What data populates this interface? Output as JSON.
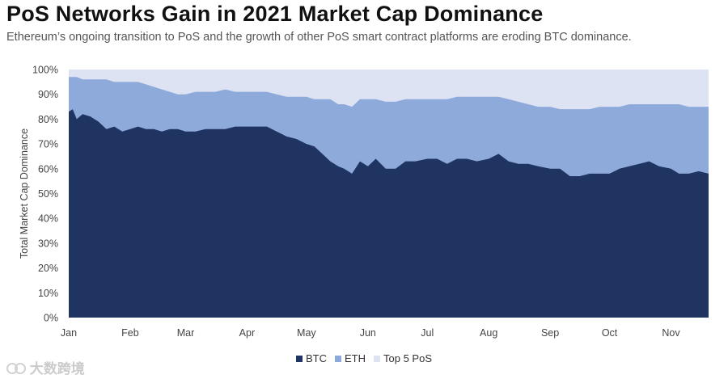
{
  "title": "PoS Networks Gain in 2021 Market Cap Dominance",
  "subtitle": "Ethereum’s ongoing transition to PoS and the growth of other PoS smart contract platforms are eroding BTC dominance.",
  "watermark": "大数跨境",
  "chart_data": {
    "type": "area",
    "stacked": true,
    "ylabel": "Total Market Cap Dominance",
    "ylim": [
      0,
      100
    ],
    "y_ticks": [
      "0%",
      "10%",
      "20%",
      "30%",
      "40%",
      "50%",
      "60%",
      "70%",
      "80%",
      "90%",
      "100%"
    ],
    "x_ticks": [
      "Jan",
      "Feb",
      "Mar",
      "Apr",
      "May",
      "Jun",
      "Jul",
      "Aug",
      "Sep",
      "Oct",
      "Nov"
    ],
    "x_range": [
      "2021-01-01",
      "2021-11-20"
    ],
    "grid": false,
    "legend_position": "bottom",
    "x": [
      "2021-01-01",
      "2021-01-03",
      "2021-01-05",
      "2021-01-08",
      "2021-01-12",
      "2021-01-16",
      "2021-01-20",
      "2021-01-24",
      "2021-01-28",
      "2021-02-01",
      "2021-02-05",
      "2021-02-09",
      "2021-02-13",
      "2021-02-17",
      "2021-02-21",
      "2021-02-25",
      "2021-03-01",
      "2021-03-06",
      "2021-03-11",
      "2021-03-16",
      "2021-03-21",
      "2021-03-26",
      "2021-04-01",
      "2021-04-06",
      "2021-04-11",
      "2021-04-16",
      "2021-04-21",
      "2021-04-26",
      "2021-05-01",
      "2021-05-05",
      "2021-05-09",
      "2021-05-13",
      "2021-05-17",
      "2021-05-20",
      "2021-05-24",
      "2021-05-28",
      "2021-06-01",
      "2021-06-05",
      "2021-06-10",
      "2021-06-15",
      "2021-06-20",
      "2021-06-25",
      "2021-07-01",
      "2021-07-06",
      "2021-07-11",
      "2021-07-16",
      "2021-07-21",
      "2021-07-26",
      "2021-08-01",
      "2021-08-06",
      "2021-08-11",
      "2021-08-16",
      "2021-08-21",
      "2021-08-26",
      "2021-09-01",
      "2021-09-06",
      "2021-09-11",
      "2021-09-16",
      "2021-09-21",
      "2021-09-26",
      "2021-10-01",
      "2021-10-06",
      "2021-10-11",
      "2021-10-16",
      "2021-10-21",
      "2021-10-26",
      "2021-11-01",
      "2021-11-05",
      "2021-11-10",
      "2021-11-15",
      "2021-11-20"
    ],
    "series": [
      {
        "name": "BTC",
        "color": "#1f3461",
        "values": [
          83,
          84,
          80,
          82,
          81,
          79,
          76,
          77,
          75,
          76,
          77,
          76,
          76,
          75,
          76,
          76,
          75,
          75,
          76,
          76,
          76,
          77,
          77,
          77,
          77,
          75,
          73,
          72,
          70,
          69,
          66,
          63,
          61,
          60,
          58,
          63,
          61,
          64,
          60,
          60,
          63,
          63,
          64,
          64,
          62,
          64,
          64,
          63,
          64,
          66,
          63,
          62,
          62,
          61,
          60,
          60,
          57,
          57,
          58,
          58,
          58,
          60,
          61,
          62,
          63,
          61,
          60,
          58,
          58,
          59,
          58
        ]
      },
      {
        "name": "ETH",
        "color": "#8eaadb",
        "values": [
          97,
          97,
          97,
          96,
          96,
          96,
          96,
          95,
          95,
          95,
          95,
          94,
          93,
          92,
          91,
          90,
          90,
          91,
          91,
          91,
          92,
          91,
          91,
          91,
          91,
          90,
          89,
          89,
          89,
          88,
          88,
          88,
          86,
          86,
          85,
          88,
          88,
          88,
          87,
          87,
          88,
          88,
          88,
          88,
          88,
          89,
          89,
          89,
          89,
          89,
          88,
          87,
          86,
          85,
          85,
          84,
          84,
          84,
          84,
          85,
          85,
          85,
          86,
          86,
          86,
          86,
          86,
          86,
          85,
          85,
          85
        ]
      },
      {
        "name": "Top 5 PoS",
        "color": "#dde3f3",
        "values": [
          100,
          100,
          100,
          100,
          100,
          100,
          100,
          100,
          100,
          100,
          100,
          100,
          100,
          100,
          100,
          100,
          100,
          100,
          100,
          100,
          100,
          100,
          100,
          100,
          100,
          100,
          100,
          100,
          100,
          100,
          100,
          100,
          100,
          100,
          100,
          100,
          100,
          100,
          100,
          100,
          100,
          100,
          100,
          100,
          100,
          100,
          100,
          100,
          100,
          100,
          100,
          100,
          100,
          100,
          100,
          100,
          100,
          100,
          100,
          100,
          100,
          100,
          100,
          100,
          100,
          100,
          100,
          100,
          100,
          100,
          100
        ]
      }
    ]
  }
}
